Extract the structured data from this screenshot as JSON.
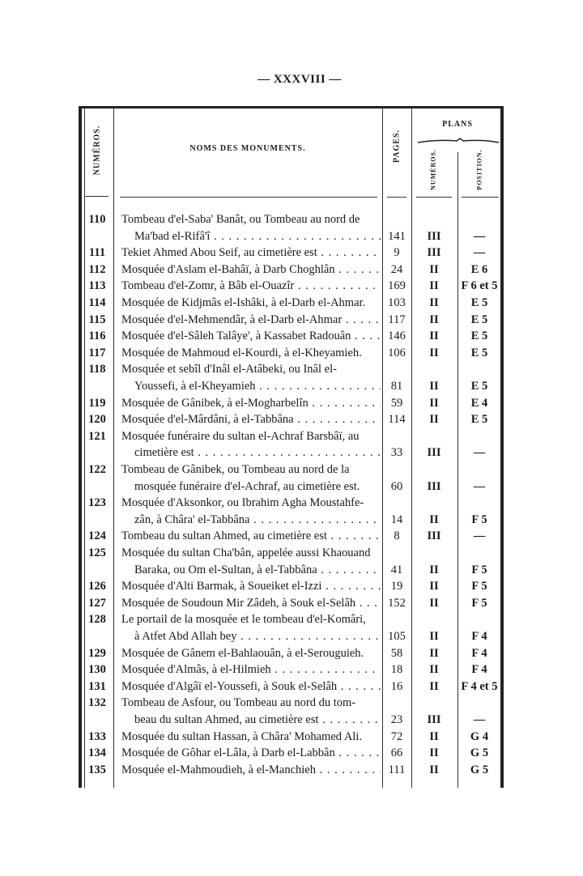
{
  "page_title": "— XXXVIII —",
  "headers": {
    "numeros": "NUMÉROS.",
    "noms": "NOMS DES MONUMENTS.",
    "pages": "PAGES.",
    "plans": "PLANS",
    "plan_numeros": "NUMÉROS.",
    "position": "POSITION."
  },
  "entries": [
    {
      "num": "110",
      "lines": [
        "Tombeau d'el-Saba' Banât, ou Tombeau au nord de",
        "Ma'bad el-Rifâ'î"
      ],
      "page": "141",
      "plan": "III",
      "position": "—"
    },
    {
      "num": "111",
      "lines": [
        "Tekiet Ahmed Abou Seif, au cimetière est"
      ],
      "page": "9",
      "plan": "III",
      "position": "—"
    },
    {
      "num": "112",
      "lines": [
        "Mosquée d'Aslam el-Bahâï, à Darb Choghlân"
      ],
      "page": "24",
      "plan": "II",
      "position": "E 6"
    },
    {
      "num": "113",
      "lines": [
        "Tombeau d'el-Zomr, à Bâb el-Ouazîr"
      ],
      "page": "169",
      "plan": "II",
      "position": "F 6 et 5"
    },
    {
      "num": "114",
      "lines": [
        "Mosquée de Kidjmâs el-Ishâki, à el-Darb el-Ahmar."
      ],
      "page": "103",
      "plan": "II",
      "position": "E 5"
    },
    {
      "num": "115",
      "lines": [
        "Mosquée d'el-Mehmendâr, à el-Darb el-Ahmar"
      ],
      "page": "117",
      "plan": "II",
      "position": "E 5"
    },
    {
      "num": "116",
      "lines": [
        "Mosquée d'el-Sâleh Talâye', à Kassabet Radouân"
      ],
      "page": "146",
      "plan": "II",
      "position": "E 5"
    },
    {
      "num": "117",
      "lines": [
        "Mosquée de Mahmoud el-Kourdi, à el-Kheyamieh."
      ],
      "page": "106",
      "plan": "II",
      "position": "E 5"
    },
    {
      "num": "118",
      "lines": [
        "Mosquée et sebîl d'Inâl el-Atâbeki, ou Inâl el-",
        "Youssefi, à el-Kheyamieh"
      ],
      "page": "81",
      "plan": "II",
      "position": "E 5"
    },
    {
      "num": "119",
      "lines": [
        "Mosquée de Gânibek, à el-Mogharbelîn"
      ],
      "page": "59",
      "plan": "II",
      "position": "E 4"
    },
    {
      "num": "120",
      "lines": [
        "Mosquée d'el-Mârdâni, à el-Tabbâna"
      ],
      "page": "114",
      "plan": "II",
      "position": "E 5"
    },
    {
      "num": "121",
      "lines": [
        "Mosquée funéraire du sultan el-Achraf Barsbâï, au",
        "cimetière est"
      ],
      "page": "33",
      "plan": "III",
      "position": "—"
    },
    {
      "num": "122",
      "lines": [
        "Tombeau de Gânibek, ou Tombeau au nord de la",
        "mosquée funéraire d'el-Achraf, au cimetière est."
      ],
      "page": "60",
      "plan": "III",
      "position": "—"
    },
    {
      "num": "123",
      "lines": [
        "Mosquée d'Aksonkor, ou Ibrahim Agha Moustahfe-",
        "zân, à Châra' el-Tabbâna"
      ],
      "page": "14",
      "plan": "II",
      "position": "F 5"
    },
    {
      "num": "124",
      "lines": [
        "Tombeau du sultan Ahmed, au cimetière est"
      ],
      "page": "8",
      "plan": "III",
      "position": "—"
    },
    {
      "num": "125",
      "lines": [
        "Mosquée du sultan Cha'bân, appelée aussi Khaouand",
        "Baraka, ou Om el-Sultan, à el-Tabbâna"
      ],
      "page": "41",
      "plan": "II",
      "position": "F 5"
    },
    {
      "num": "126",
      "lines": [
        "Mosquée d'Alti Barmak, à Soueiket el-Izzi"
      ],
      "page": "19",
      "plan": "II",
      "position": "F 5"
    },
    {
      "num": "127",
      "lines": [
        "Mosquée de Soudoun Mir Zâdeh, à Souk el-Selâh"
      ],
      "page": "152",
      "plan": "II",
      "position": "F 5"
    },
    {
      "num": "128",
      "lines": [
        "Le portail de la mosquée et le tombeau d'el-Komâri,",
        "à Atfet Abd Allah bey"
      ],
      "page": "105",
      "plan": "II",
      "position": "F 4"
    },
    {
      "num": "129",
      "lines": [
        "Mosquée de Gânem el-Bahlaouân, à el-Serouguieh."
      ],
      "page": "58",
      "plan": "II",
      "position": "F 4"
    },
    {
      "num": "130",
      "lines": [
        "Mosquée d'Almâs, à el-Hilmieh"
      ],
      "page": "18",
      "plan": "II",
      "position": "F 4"
    },
    {
      "num": "131",
      "lines": [
        "Mosquée d'Algâï el-Youssefi, à Souk el-Selâh"
      ],
      "page": "16",
      "plan": "II",
      "position": "F 4 et 5"
    },
    {
      "num": "132",
      "lines": [
        "Tombeau de Asfour, ou Tombeau au nord du tom-",
        "beau du sultan Ahmed, au cimetière est"
      ],
      "page": "23",
      "plan": "III",
      "position": "—"
    },
    {
      "num": "133",
      "lines": [
        "Mosquée du sultan Hassan, à Châra' Mohamed Ali."
      ],
      "page": "72",
      "plan": "II",
      "position": "G 4"
    },
    {
      "num": "134",
      "lines": [
        "Mosquée de Gôhar el-Lâla, à Darb el-Labbân"
      ],
      "page": "66",
      "plan": "II",
      "position": "G 5"
    },
    {
      "num": "135",
      "lines": [
        "Mosquée el-Mahmoudieh, à el-Manchieh"
      ],
      "page": "111",
      "plan": "II",
      "position": "G 5"
    }
  ]
}
